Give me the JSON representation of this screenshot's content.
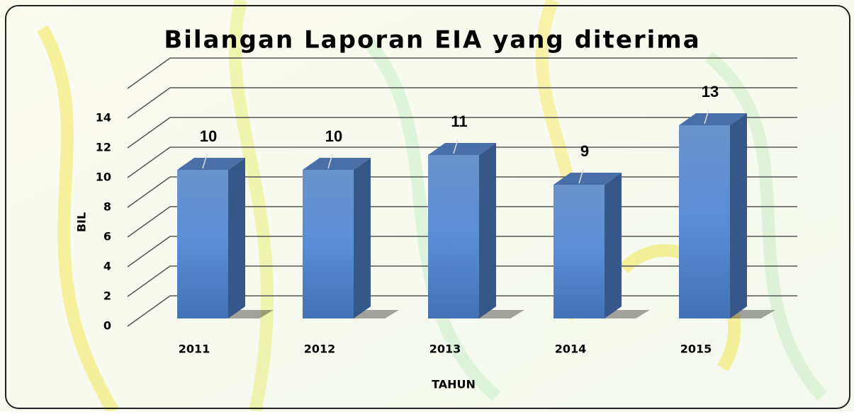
{
  "chart_data": {
    "type": "bar3d",
    "title": "Bilangan Laporan EIA yang diterima",
    "categories": [
      "2011",
      "2012",
      "2013",
      "2014",
      "2015"
    ],
    "values": [
      10,
      10,
      11,
      9,
      13
    ],
    "color": "#4f81bd",
    "x_label": "TAHUN",
    "y_label": "BIL",
    "ylim": [
      0,
      16
    ],
    "yticks": [
      0,
      2,
      4,
      6,
      8,
      10,
      12,
      14
    ],
    "grid": true
  }
}
